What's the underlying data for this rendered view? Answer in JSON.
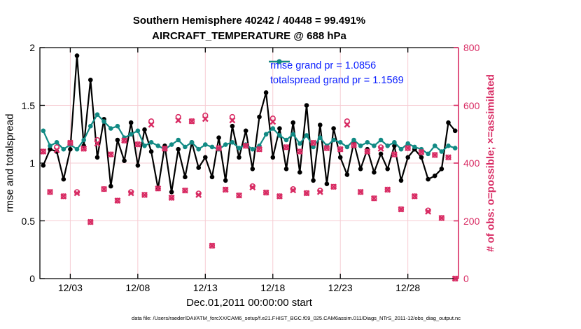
{
  "figure": {
    "title_line1": "Southern Hemisphere 40242 / 40448 = 99.491%",
    "title_line2": "AIRCRAFT_TEMPERATURE @ 688 hPa",
    "xlabel": "Dec.01,2011 00:00:00 start",
    "ylabel_left": "rmse and totalspread",
    "ylabel_right": "# of obs: o=possible; ×=assimilated",
    "data_file_caption": "data file: /Users/raeder/DAI/ATM_forcXX/CAM6_setup/f.e21.FHIST_BGC.f09_025.CAM6assim.011/Diags_NTrS_2011-12/obs_diag_output.nc"
  },
  "legend": {
    "rmse_label": "rmse grand pr = 1.0856",
    "totalspread_label": "totalspread grand pr = 1.1569",
    "rmse_grand_pr": 1.0856,
    "totalspread_grand_pr": 1.1569,
    "text_color": "#0a1eff"
  },
  "colors": {
    "rmse": "#000000",
    "totalspread": "#118a84",
    "obs": "#d82b63",
    "grid": "#f6ccd3",
    "axis": "#000000"
  },
  "chart_data": {
    "type": "line",
    "title": "Southern Hemisphere 40242 / 40448 = 99.491% | AIRCRAFT_TEMPERATURE @ 688 hPa",
    "xlabel": "Dec.01,2011 00:00:00 start",
    "ylabel_left": "rmse and totalspread",
    "ylabel_right": "# of obs: o=possible; ×=assimilated",
    "grid": true,
    "legend_position": "top-center-inside",
    "xlim_days_dec2011": [
      0.75,
      31.75
    ],
    "ylim_left": [
      0,
      2
    ],
    "ylim_right": [
      0,
      800
    ],
    "xticks": {
      "days": [
        3,
        8,
        13,
        18,
        23,
        28
      ],
      "labels": [
        "12/03",
        "12/08",
        "12/13",
        "12/18",
        "12/23",
        "12/28"
      ]
    },
    "yticks_left": {
      "values": [
        0,
        0.5,
        1,
        1.5,
        2
      ],
      "labels": [
        "0",
        "0.5",
        "1",
        "1.5",
        "2"
      ]
    },
    "yticks_right": {
      "values": [
        0,
        200,
        400,
        600,
        800
      ],
      "labels": [
        "0",
        "200",
        "400",
        "600",
        "800"
      ]
    },
    "x_days": [
      1.0,
      1.5,
      2.0,
      2.5,
      3.0,
      3.5,
      4.0,
      4.5,
      5.0,
      5.5,
      6.0,
      6.5,
      7.0,
      7.5,
      8.0,
      8.5,
      9.0,
      9.5,
      10.0,
      10.5,
      11.0,
      11.5,
      12.0,
      12.5,
      13.0,
      13.5,
      14.0,
      14.5,
      15.0,
      15.5,
      16.0,
      16.5,
      17.0,
      17.5,
      18.0,
      18.5,
      19.0,
      19.5,
      20.0,
      20.5,
      21.0,
      21.5,
      22.0,
      22.5,
      23.0,
      23.5,
      24.0,
      24.5,
      25.0,
      25.5,
      26.0,
      26.5,
      27.0,
      27.5,
      28.0,
      28.5,
      29.0,
      29.5,
      30.0,
      30.5,
      31.0,
      31.5
    ],
    "series": [
      {
        "name": "rmse",
        "axis": "left",
        "color": "#000000",
        "marker": "dot",
        "values": [
          0.98,
          1.12,
          1.1,
          0.86,
          1.12,
          1.93,
          1.15,
          1.72,
          1.05,
          1.38,
          0.8,
          1.2,
          1.02,
          1.35,
          0.98,
          1.29,
          1.1,
          0.78,
          1.15,
          0.75,
          1.12,
          0.88,
          1.18,
          0.96,
          1.05,
          0.88,
          1.22,
          0.85,
          1.32,
          1.05,
          1.28,
          0.95,
          1.4,
          1.61,
          1.05,
          1.3,
          0.95,
          1.35,
          0.92,
          1.5,
          0.85,
          1.33,
          0.82,
          1.3,
          1.05,
          0.9,
          1.18,
          0.95,
          1.12,
          0.92,
          1.08,
          0.95,
          1.15,
          0.85,
          1.05,
          1.12,
          1.05,
          0.86,
          0.89,
          0.95,
          1.35,
          1.28
        ]
      },
      {
        "name": "totalspread",
        "axis": "left",
        "color": "#118a84",
        "marker": "dot",
        "values": [
          1.28,
          1.15,
          1.18,
          1.12,
          1.16,
          1.12,
          1.2,
          1.32,
          1.42,
          1.36,
          1.3,
          1.32,
          1.22,
          1.25,
          1.28,
          1.15,
          1.18,
          1.15,
          1.12,
          1.16,
          1.2,
          1.14,
          1.18,
          1.12,
          1.16,
          1.14,
          1.12,
          1.16,
          1.18,
          1.13,
          1.16,
          1.12,
          1.15,
          1.25,
          1.3,
          1.24,
          1.2,
          1.25,
          1.17,
          1.24,
          1.14,
          1.22,
          1.15,
          1.2,
          1.18,
          1.14,
          1.2,
          1.15,
          1.18,
          1.15,
          1.2,
          1.15,
          1.18,
          1.12,
          1.17,
          1.14,
          1.12,
          1.08,
          1.15,
          1.1,
          1.15,
          1.13
        ]
      },
      {
        "name": "possible_obs",
        "axis": "right",
        "color": "#d82b63",
        "marker": "o",
        "values": [
          440,
          300,
          455,
          285,
          470,
          300,
          450,
          196,
          480,
          310,
          430,
          270,
          478,
          300,
          465,
          290,
          545,
          312,
          450,
          280,
          560,
          305,
          545,
          295,
          565,
          114,
          452,
          308,
          560,
          288,
          460,
          320,
          448,
          298,
          555,
          285,
          455,
          310,
          440,
          296,
          470,
          305,
          452,
          318,
          448,
          545,
          462,
          300,
          440,
          278,
          455,
          308,
          430,
          240,
          452,
          285,
          438,
          236,
          428,
          210,
          420,
          0
        ]
      },
      {
        "name": "assimilated_obs",
        "axis": "right",
        "color": "#d82b63",
        "marker": "x",
        "values": [
          440,
          300,
          445,
          285,
          470,
          296,
          450,
          196,
          468,
          310,
          430,
          270,
          478,
          296,
          465,
          290,
          533,
          312,
          450,
          280,
          548,
          305,
          545,
          290,
          553,
          114,
          452,
          308,
          548,
          288,
          460,
          316,
          448,
          298,
          543,
          285,
          455,
          306,
          440,
          296,
          470,
          300,
          452,
          318,
          448,
          533,
          462,
          300,
          440,
          278,
          450,
          308,
          430,
          240,
          452,
          285,
          438,
          232,
          428,
          210,
          420,
          0
        ]
      }
    ]
  }
}
